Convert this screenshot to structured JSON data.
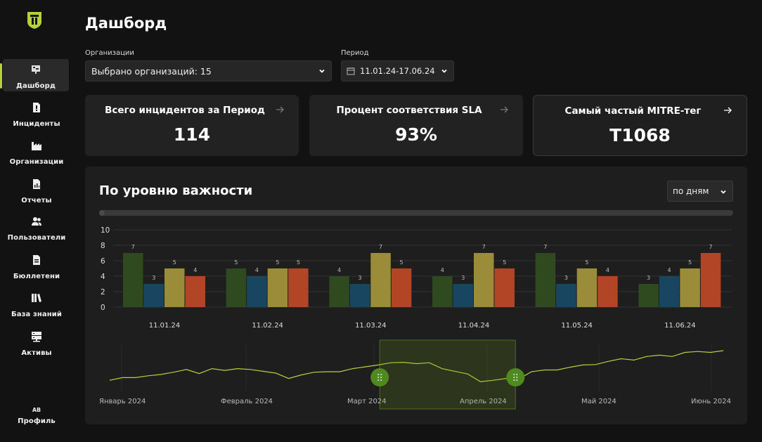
{
  "sidebar": {
    "items": [
      {
        "label": "Дашборд",
        "icon": "dashboard-icon",
        "active": true
      },
      {
        "label": "Инциденты",
        "icon": "incident-icon"
      },
      {
        "label": "Организации",
        "icon": "factory-icon"
      },
      {
        "label": "Отчеты",
        "icon": "report-icon"
      },
      {
        "label": "Пользователи",
        "icon": "users-icon"
      },
      {
        "label": "Бюллетени",
        "icon": "bulletin-icon"
      },
      {
        "label": "База знаний",
        "icon": "knowledge-icon"
      },
      {
        "label": "Активы",
        "icon": "server-icon"
      }
    ],
    "profile": {
      "avatar": "AB",
      "label": "Профиль"
    }
  },
  "header": {
    "title": "Дашборд",
    "org_label": "Организации",
    "org_value": "Выбрано организаций: 15",
    "period_label": "Период",
    "period_value": "11.01.24-17.06.24"
  },
  "kpis": [
    {
      "title": "Всего инцидентов за Период",
      "value": "114"
    },
    {
      "title": "Процент соответствия SLA",
      "value": "93%"
    },
    {
      "title": "Самый частый MITRE-тег",
      "value": "T1068"
    }
  ],
  "panel": {
    "title": "По уровню важности",
    "granularity": "по дням"
  },
  "colors": {
    "accent": "#b5d23c",
    "series": [
      "#2e4a1e",
      "#184660",
      "#9a8c38",
      "#b24526"
    ],
    "brush": "#4e8a1e"
  },
  "chart_data": {
    "type": "bar",
    "categories": [
      "11.01.24",
      "11.02.24",
      "11.03.24",
      "11.04.24",
      "11.05.24",
      "11.06.24"
    ],
    "series": [
      {
        "values": [
          7,
          5,
          4,
          4,
          7,
          3
        ]
      },
      {
        "values": [
          3,
          4,
          3,
          3,
          3,
          4
        ]
      },
      {
        "values": [
          5,
          5,
          7,
          7,
          5,
          5
        ]
      },
      {
        "values": [
          4,
          5,
          5,
          5,
          4,
          7
        ]
      }
    ],
    "yticks": [
      0,
      2,
      4,
      6,
      8,
      10
    ],
    "ylim": [
      0,
      10
    ],
    "grid": true,
    "overview": {
      "type": "line",
      "months": [
        "Январь 2024",
        "Февраль 2024",
        "Март 2024",
        "Апрель 2024",
        "Май 2024",
        "Июнь 2024"
      ],
      "values": [
        2,
        2.6,
        2.6,
        3,
        3.3,
        3.8,
        4.4,
        3.5,
        4.6,
        4.2,
        4.6,
        4.4,
        4.0,
        3.6,
        2.4,
        3.2,
        3.8,
        3.9,
        3.9,
        4.6,
        5.0,
        5.4,
        5.9,
        6.0,
        5.7,
        5.9,
        4.6,
        4.0,
        3.4,
        1.7,
        2.0,
        2.4,
        2.3,
        3.9,
        4.3,
        4.3,
        4.9,
        5.4,
        5.5,
        6.2,
        6.8,
        6.5,
        7.3,
        7.6,
        7.3,
        8.2,
        8.4,
        8.2,
        8.6
      ],
      "selection": [
        0.445,
        0.65
      ]
    }
  }
}
